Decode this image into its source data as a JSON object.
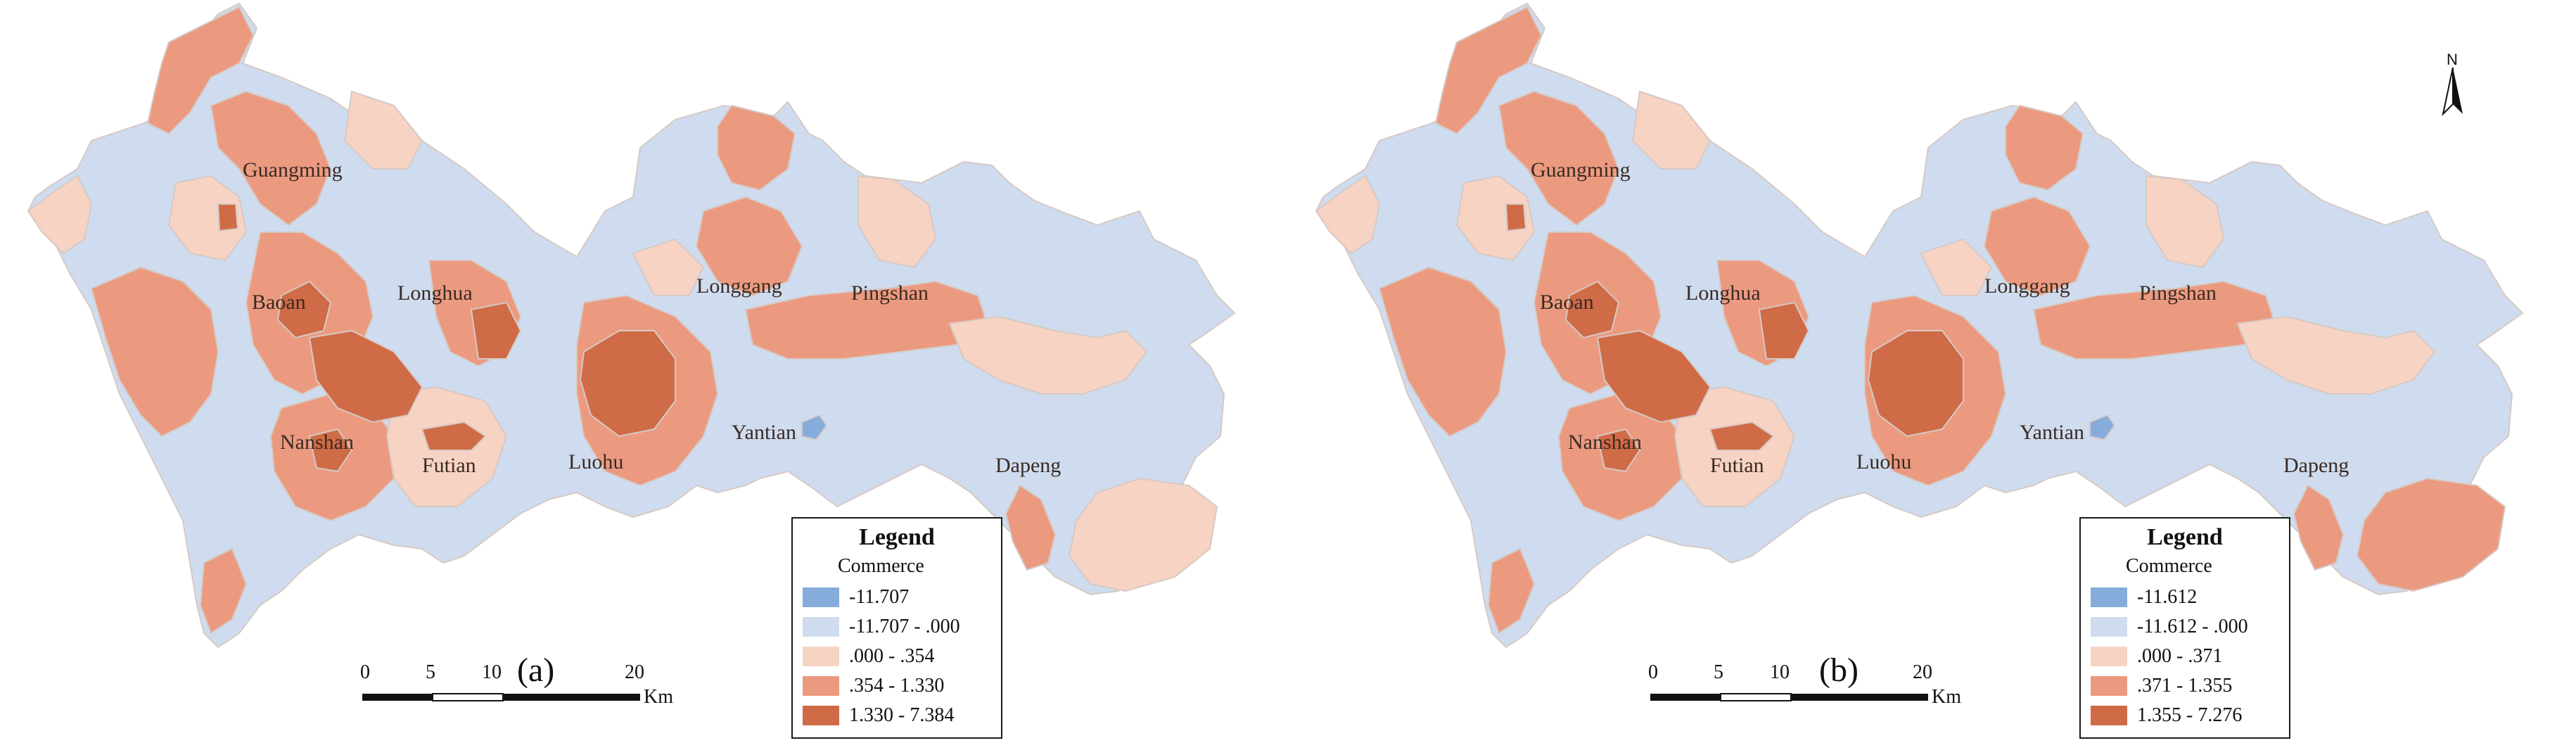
{
  "colors": {
    "class1": "#86acdc",
    "class2": "#cfdcef",
    "class3": "#f7d3c4",
    "class4": "#eb9a80",
    "class5": "#cf6b46",
    "boundary": "#d6c9c4"
  },
  "panels": [
    {
      "label": "(a)",
      "districts": [
        "Guangming",
        "Baoan",
        "Longhua",
        "Longgang",
        "Pingshan",
        "Nanshan",
        "Futian",
        "Luohu",
        "Yantian",
        "Dapeng"
      ],
      "legend": {
        "title": "Legend",
        "field": "Commerce",
        "items": [
          "-11.707",
          "-11.707 - .000",
          ".000 - .354",
          ".354 - 1.330",
          "1.330 - 7.384"
        ]
      },
      "scale": {
        "ticks": [
          "0",
          "5",
          "10",
          "20"
        ],
        "unit": "Km"
      }
    },
    {
      "label": "(b)",
      "districts": [
        "Guangming",
        "Baoan",
        "Longhua",
        "Longgang",
        "Pingshan",
        "Nanshan",
        "Futian",
        "Luohu",
        "Yantian",
        "Dapeng"
      ],
      "legend": {
        "title": "Legend",
        "field": "Commerce",
        "items": [
          "-11.612",
          "-11.612 - .000",
          ".000 - .371",
          ".371 - 1.355",
          "1.355 - 7.276"
        ]
      },
      "scale": {
        "ticks": [
          "0",
          "5",
          "10",
          "20"
        ],
        "unit": "Km"
      },
      "north": "N"
    }
  ]
}
